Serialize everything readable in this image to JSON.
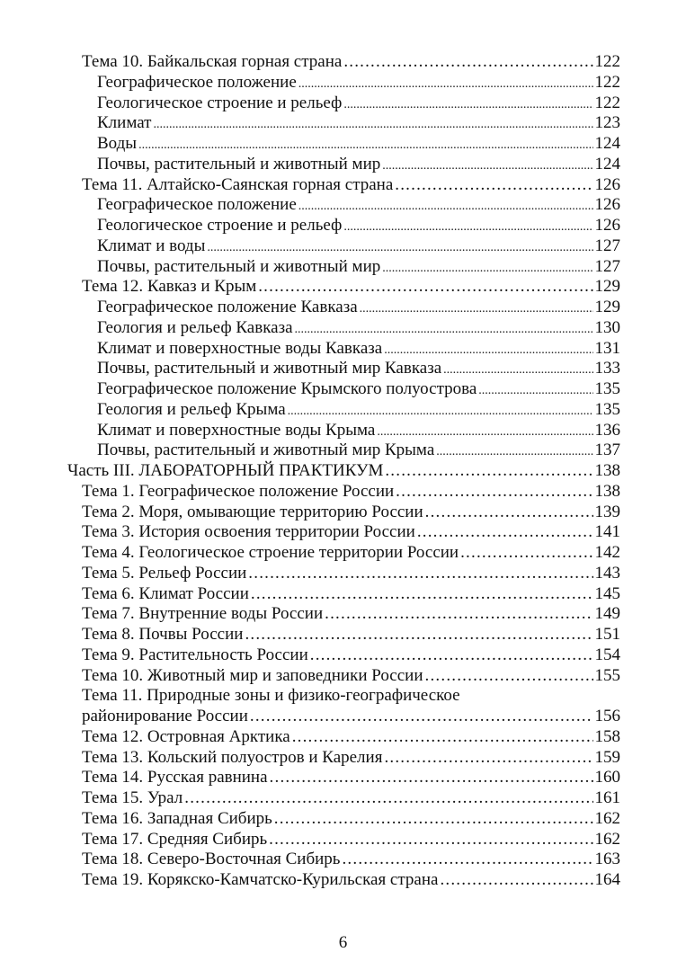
{
  "toc": [
    {
      "level": 1,
      "label": "Тема 10. Байкальская горная страна",
      "page": "122"
    },
    {
      "level": 2,
      "label": "Географическое положение",
      "page": "122"
    },
    {
      "level": 2,
      "label": "Геологическое строение и рельеф",
      "page": "122"
    },
    {
      "level": 2,
      "label": "Климат",
      "page": "123"
    },
    {
      "level": 2,
      "label": "Воды",
      "page": "124"
    },
    {
      "level": 2,
      "label": "Почвы, растительный и животный мир",
      "page": "124"
    },
    {
      "level": 1,
      "label": "Тема 11. Алтайско-Саянская горная страна",
      "page": "126"
    },
    {
      "level": 2,
      "label": "Географическое положение",
      "page": "126"
    },
    {
      "level": 2,
      "label": "Геологическое строение и рельеф",
      "page": "126"
    },
    {
      "level": 2,
      "label": "Климат и воды",
      "page": "127"
    },
    {
      "level": 2,
      "label": "Почвы, растительный и животный мир",
      "page": "127"
    },
    {
      "level": 1,
      "label": "Тема 12. Кавказ и Крым",
      "page": "129"
    },
    {
      "level": 2,
      "label": "Географическое положение Кавказа",
      "page": "129"
    },
    {
      "level": 2,
      "label": "Геология и рельеф Кавказа",
      "page": "130"
    },
    {
      "level": 2,
      "label": "Климат и поверхностные воды Кавказа",
      "page": "131"
    },
    {
      "level": 2,
      "label": "Почвы, растительный и животный мир Кавказа",
      "page": "133"
    },
    {
      "level": 2,
      "label": "Географическое положение Крымского полуострова",
      "page": "135"
    },
    {
      "level": 2,
      "label": "Геология и рельеф Крыма",
      "page": "135"
    },
    {
      "level": 2,
      "label": "Климат и поверхностные воды Крыма",
      "page": "136"
    },
    {
      "level": 2,
      "label": "Почвы, растительный и животный мир Крыма",
      "page": "137"
    },
    {
      "level": 0,
      "label": "Часть III. ЛАБОРАТОРНЫЙ ПРАКТИКУМ",
      "page": "138"
    },
    {
      "level": 1,
      "label": "Тема 1. Географическое положение России",
      "page": "138"
    },
    {
      "level": 1,
      "label": "Тема 2. Моря, омывающие территорию России",
      "page": "139"
    },
    {
      "level": 1,
      "label": "Тема 3. История освоения территории России",
      "page": "141"
    },
    {
      "level": 1,
      "label": "Тема 4. Геологическое строение территории России",
      "page": "142"
    },
    {
      "level": 1,
      "label": "Тема 5. Рельеф России",
      "page": "143"
    },
    {
      "level": 1,
      "label": "Тема 6. Климат России",
      "page": "145"
    },
    {
      "level": 1,
      "label": "Тема 7. Внутренние воды России",
      "page": "149"
    },
    {
      "level": 1,
      "label": "Тема 8. Почвы России",
      "page": "151"
    },
    {
      "level": 1,
      "label": "Тема 9. Растительность России",
      "page": "154"
    },
    {
      "level": 1,
      "label": "Тема 10. Животный мир и заповедники России",
      "page": "155"
    },
    {
      "level": 1,
      "label": "Тема 11. Природные зоны и физико-географическое",
      "page": ""
    },
    {
      "level": 1,
      "label": "районирование России",
      "page": "156"
    },
    {
      "level": 1,
      "label": "Тема 12. Островная Арктика",
      "page": "158"
    },
    {
      "level": 1,
      "label": "Тема 13. Кольский полуостров и Карелия",
      "page": "159"
    },
    {
      "level": 1,
      "label": "Тема 14. Русская равнина",
      "page": "160"
    },
    {
      "level": 1,
      "label": "Тема 15. Урал",
      "page": "161"
    },
    {
      "level": 1,
      "label": "Тема 16. Западная Сибирь",
      "page": "162"
    },
    {
      "level": 1,
      "label": "Тема 17. Средняя Сибирь",
      "page": "162"
    },
    {
      "level": 1,
      "label": "Тема 18. Северо-Восточная Сибирь",
      "page": "163"
    },
    {
      "level": 1,
      "label": "Тема 19. Корякско-Камчатско-Курильская страна",
      "page": "164"
    }
  ],
  "page_number": "6"
}
